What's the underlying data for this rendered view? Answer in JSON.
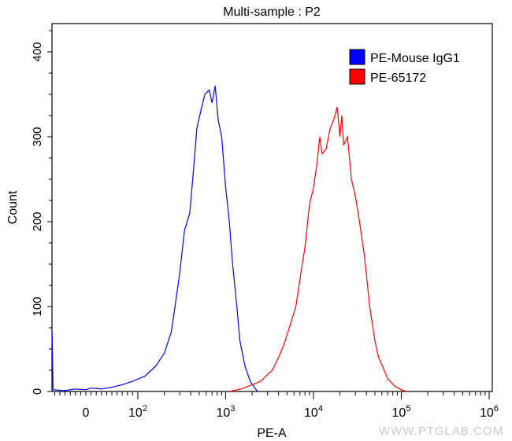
{
  "chart_data": {
    "type": "line",
    "title": "Multi-sample : P2",
    "xlabel": "PE-A",
    "ylabel": "Count",
    "x_scale": "biexponential",
    "xlim": [
      -65,
      1000000
    ],
    "ylim": [
      0,
      433
    ],
    "x_ticks": [
      {
        "value": 0,
        "label": "0"
      },
      {
        "value": 100,
        "label": "10",
        "exp": "2"
      },
      {
        "value": 1000,
        "label": "10",
        "exp": "3"
      },
      {
        "value": 10000,
        "label": "10",
        "exp": "4"
      },
      {
        "value": 100000,
        "label": "10",
        "exp": "5"
      },
      {
        "value": 1000000,
        "label": "10",
        "exp": "6"
      }
    ],
    "y_ticks": [
      0,
      100,
      200,
      300,
      400
    ],
    "grid": false,
    "legend_placement": "top-right",
    "series": [
      {
        "name": "PE-Mouse IgG1",
        "color": "#0000ff",
        "points": [
          [
            -65,
            70
          ],
          [
            -63,
            2
          ],
          [
            -40,
            1
          ],
          [
            -20,
            3
          ],
          [
            0,
            2
          ],
          [
            10,
            4
          ],
          [
            30,
            3
          ],
          [
            50,
            5
          ],
          [
            70,
            8
          ],
          [
            90,
            12
          ],
          [
            120,
            18
          ],
          [
            160,
            30
          ],
          [
            200,
            45
          ],
          [
            240,
            70
          ],
          [
            265,
            100
          ],
          [
            300,
            140
          ],
          [
            340,
            190
          ],
          [
            390,
            210
          ],
          [
            430,
            260
          ],
          [
            470,
            310
          ],
          [
            520,
            330
          ],
          [
            580,
            350
          ],
          [
            650,
            355
          ],
          [
            700,
            340
          ],
          [
            760,
            360
          ],
          [
            820,
            320
          ],
          [
            900,
            300
          ],
          [
            950,
            270
          ],
          [
            1000,
            240
          ],
          [
            1050,
            220
          ],
          [
            1100,
            200
          ],
          [
            1200,
            150
          ],
          [
            1340,
            100
          ],
          [
            1450,
            60
          ],
          [
            1660,
            30
          ],
          [
            1900,
            12
          ],
          [
            2300,
            0
          ]
        ]
      },
      {
        "name": "PE-65172",
        "color": "#ff0000",
        "points": [
          [
            1100,
            0
          ],
          [
            1500,
            3
          ],
          [
            2000,
            8
          ],
          [
            2500,
            12
          ],
          [
            3000,
            20
          ],
          [
            3400,
            25
          ],
          [
            4000,
            40
          ],
          [
            4600,
            55
          ],
          [
            5300,
            75
          ],
          [
            6300,
            100
          ],
          [
            7200,
            140
          ],
          [
            8000,
            170
          ],
          [
            9000,
            220
          ],
          [
            10000,
            240
          ],
          [
            11000,
            270
          ],
          [
            11800,
            300
          ],
          [
            12500,
            280
          ],
          [
            13900,
            285
          ],
          [
            15500,
            310
          ],
          [
            17000,
            320
          ],
          [
            18600,
            335
          ],
          [
            20000,
            300
          ],
          [
            21000,
            325
          ],
          [
            22000,
            290
          ],
          [
            24400,
            300
          ],
          [
            27000,
            250
          ],
          [
            30000,
            230
          ],
          [
            33400,
            200
          ],
          [
            38000,
            160
          ],
          [
            43700,
            100
          ],
          [
            50000,
            60
          ],
          [
            55000,
            40
          ],
          [
            61000,
            30
          ],
          [
            70000,
            15
          ],
          [
            85000,
            6
          ],
          [
            100000,
            2
          ],
          [
            115000,
            0
          ]
        ]
      }
    ]
  },
  "watermark": "WWW.PTGLAB.COM"
}
